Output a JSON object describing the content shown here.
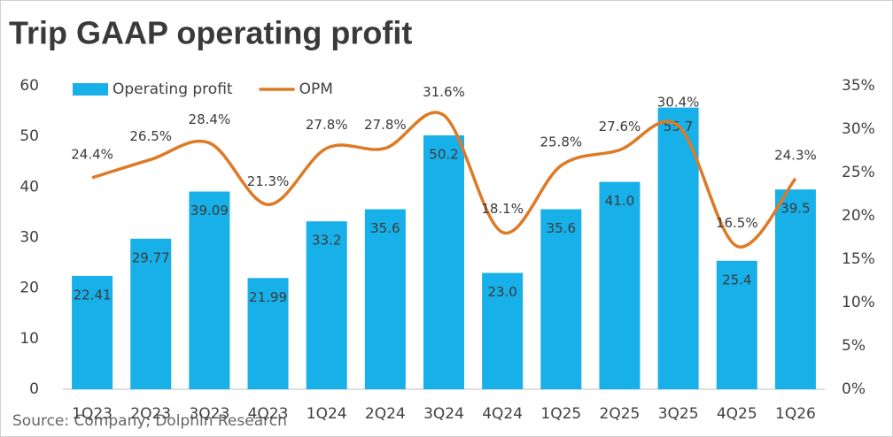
{
  "chart_data": {
    "type": "bar",
    "title": "Trip GAAP operating profit",
    "source": "Source: Company, Dolphin Research",
    "categories": [
      "1Q23",
      "2Q23",
      "3Q23",
      "4Q23",
      "1Q24",
      "2Q24",
      "3Q24",
      "4Q24",
      "1Q25",
      "2Q25",
      "3Q25",
      "4Q25",
      "1Q26"
    ],
    "series": [
      {
        "name": "Operating profit",
        "type": "bar",
        "color": "#18b0e8",
        "values": [
          22.41,
          29.77,
          39.09,
          21.99,
          33.2,
          35.6,
          50.2,
          23.0,
          35.6,
          41.0,
          55.7,
          25.4,
          39.5
        ],
        "value_labels": [
          "22.41",
          "29.77",
          "39.09",
          "21.99",
          "33.2",
          "35.6",
          "50.2",
          "23.0",
          "35.6",
          "41.0",
          "55.7",
          "25.4",
          "39.5"
        ]
      },
      {
        "name": "OPM",
        "type": "line",
        "axis": "y2",
        "color": "#dd7a26",
        "values": [
          24.4,
          26.5,
          28.4,
          21.3,
          27.8,
          27.8,
          31.6,
          18.1,
          25.8,
          27.6,
          30.4,
          16.5,
          24.3
        ],
        "value_labels": [
          "24.4%",
          "26.5%",
          "28.4%",
          "21.3%",
          "27.8%",
          "27.8%",
          "31.6%",
          "18.1%",
          "25.8%",
          "27.6%",
          "30.4%",
          "16.5%",
          "24.3%"
        ]
      }
    ],
    "ylim": [
      0,
      60
    ],
    "yticks": [
      0,
      10,
      20,
      30,
      40,
      50,
      60
    ],
    "y2lim": [
      0,
      35
    ],
    "y2ticks": [
      {
        "value": 0,
        "label": "0%"
      },
      {
        "value": 5,
        "label": "5%"
      },
      {
        "value": 10,
        "label": "10%"
      },
      {
        "value": 15,
        "label": "15%"
      },
      {
        "value": 20,
        "label": "20%"
      },
      {
        "value": 25,
        "label": "25%"
      },
      {
        "value": 30,
        "label": "30%"
      },
      {
        "value": 35,
        "label": "35%"
      }
    ],
    "legend": "top-left",
    "grid": false
  }
}
